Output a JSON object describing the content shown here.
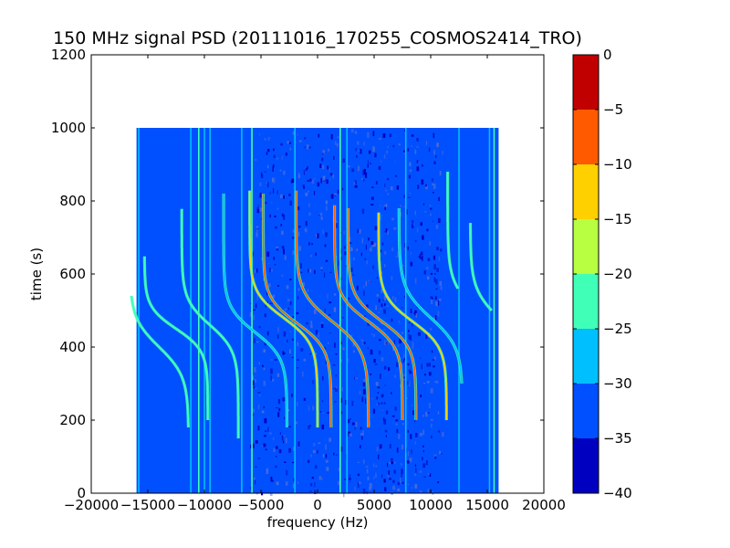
{
  "chart_data": {
    "type": "heatmap",
    "title": "150 MHz signal PSD (20111016_170255_COSMOS2414_TRO)",
    "xlabel": "frequency (Hz)",
    "ylabel": "time (s)",
    "xlim": [
      -20000,
      20000
    ],
    "ylim": [
      0,
      1200
    ],
    "x_ticks": [
      -20000,
      -15000,
      -10000,
      -5000,
      0,
      5000,
      10000,
      15000,
      20000
    ],
    "y_ticks": [
      0,
      200,
      400,
      600,
      800,
      1000,
      1200
    ],
    "data_extent": {
      "x": [
        -16000,
        16000
      ],
      "y": [
        0,
        1000
      ]
    },
    "background_level": -35,
    "colorbar": {
      "ticks": [
        0,
        -5,
        -10,
        -15,
        -20,
        -25,
        -30,
        -35,
        -40
      ],
      "min": -40,
      "max": 0,
      "levels": [
        {
          "range": [
            -40,
            -35
          ],
          "color": "#0000c0"
        },
        {
          "range": [
            -35,
            -30
          ],
          "color": "#0050ff"
        },
        {
          "range": [
            -30,
            -25
          ],
          "color": "#00bfff"
        },
        {
          "range": [
            -25,
            -20
          ],
          "color": "#40ffb7"
        },
        {
          "range": [
            -20,
            -15
          ],
          "color": "#b7ff40"
        },
        {
          "range": [
            -15,
            -10
          ],
          "color": "#ffd000"
        },
        {
          "range": [
            -10,
            -5
          ],
          "color": "#ff5a00"
        },
        {
          "range": [
            -5,
            0
          ],
          "color": "#c00000"
        }
      ]
    },
    "vertical_lines": [
      {
        "x": -15800,
        "level": -28
      },
      {
        "x": -11200,
        "level": -27
      },
      {
        "x": -10500,
        "level": -25
      },
      {
        "x": -10000,
        "level": -27
      },
      {
        "x": -9500,
        "level": -30
      },
      {
        "x": -6700,
        "level": -29
      },
      {
        "x": -5800,
        "level": -25
      },
      {
        "x": -2000,
        "level": -27
      },
      {
        "x": 2000,
        "level": -25
      },
      {
        "x": 2600,
        "level": -28
      },
      {
        "x": 7800,
        "level": -28
      },
      {
        "x": 12500,
        "level": -27
      },
      {
        "x": 15200,
        "level": -26
      },
      {
        "x": 15600,
        "level": -25
      }
    ],
    "doppler_tracks": [
      {
        "f0": -12500,
        "t0": 450,
        "A": 2800,
        "s": 60,
        "tmin": 200,
        "tmax": 650,
        "level": -22
      },
      {
        "f0": -14000,
        "t0": 400,
        "A": 2600,
        "s": 80,
        "tmin": 180,
        "tmax": 540,
        "level": -22
      },
      {
        "f0": -9500,
        "t0": 460,
        "A": 2500,
        "s": 70,
        "tmin": 150,
        "tmax": 780,
        "level": -24
      },
      {
        "f0": -5500,
        "t0": 440,
        "A": 2800,
        "s": 70,
        "tmin": 180,
        "tmax": 820,
        "level": -26
      },
      {
        "f0": -3000,
        "t0": 480,
        "A": 3000,
        "s": 70,
        "tmin": 180,
        "tmax": 830,
        "level": -14
      },
      {
        "f0": -1800,
        "t0": 465,
        "A": 3000,
        "s": 70,
        "tmin": 180,
        "tmax": 820,
        "level": -10
      },
      {
        "f0": 1300,
        "t0": 470,
        "A": 3200,
        "s": 80,
        "tmin": 180,
        "tmax": 830,
        "level": -8
      },
      {
        "f0": 4500,
        "t0": 470,
        "A": 3000,
        "s": 70,
        "tmin": 200,
        "tmax": 790,
        "level": -10
      },
      {
        "f0": 5700,
        "t0": 470,
        "A": 3000,
        "s": 70,
        "tmin": 200,
        "tmax": 780,
        "level": -9
      },
      {
        "f0": 8400,
        "t0": 470,
        "A": 3000,
        "s": 70,
        "tmin": 200,
        "tmax": 770,
        "level": -15
      },
      {
        "f0": 10000,
        "t0": 480,
        "A": 2800,
        "s": 80,
        "tmin": 300,
        "tmax": 780,
        "level": -26
      },
      {
        "f0": 14000,
        "t0": 500,
        "A": 2500,
        "s": 80,
        "tmin": 560,
        "tmax": 880,
        "level": -22
      },
      {
        "f0": 16000,
        "t0": 480,
        "A": 2500,
        "s": 80,
        "tmin": 500,
        "tmax": 740,
        "level": -24
      }
    ]
  }
}
